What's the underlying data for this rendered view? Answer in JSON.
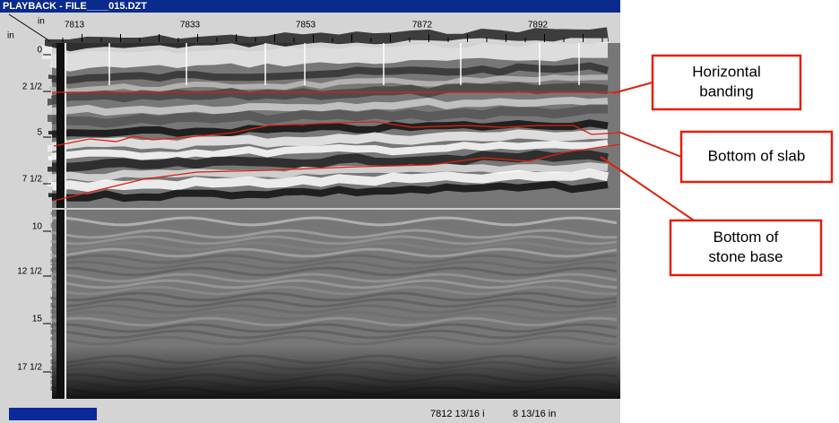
{
  "title_bar": "PLAYBACK - FILE____015.DZT",
  "ruler": {
    "unit_top": "in",
    "unit_left": "in",
    "x_labels": [
      "7813",
      "7833",
      "7853",
      "7872",
      "7892"
    ],
    "y_labels": [
      "0",
      "2 1/2",
      "5",
      "7 1/2",
      "10",
      "12 1/2",
      "15",
      "17 1/2"
    ]
  },
  "status": {
    "position": "7812 13/16 i",
    "depth": "8 13/16 in"
  },
  "annotations": [
    {
      "lines": [
        "Horizontal",
        "banding"
      ]
    },
    {
      "lines": [
        "Bottom of slab"
      ]
    },
    {
      "lines": [
        "Bottom of",
        "stone base"
      ]
    }
  ]
}
